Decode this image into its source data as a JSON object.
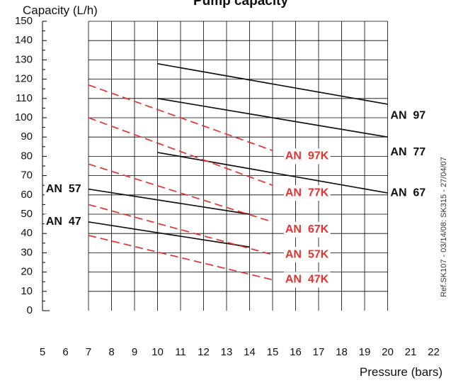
{
  "chart_data": {
    "type": "line",
    "title": "Pump capacity",
    "xlabel": "Pressure  (bars)",
    "ylabel": "Capacity  (L/h)",
    "xlim": [
      5,
      22
    ],
    "ylim": [
      0,
      150
    ],
    "x_ticks": [
      "5",
      "6",
      "7",
      "8",
      "9",
      "10",
      "11",
      "12",
      "13",
      "14",
      "15",
      "16",
      "17",
      "18",
      "19",
      "20",
      "21",
      "22"
    ],
    "y_ticks": [
      "0",
      "10",
      "20",
      "30",
      "40",
      "50",
      "60",
      "70",
      "80",
      "90",
      "100",
      "110",
      "120",
      "130",
      "140",
      "150"
    ],
    "grid": true,
    "side_note": "Ref.SK107 - 03/14/08: SK315 - 27/04/07",
    "colors": {
      "solid": "#111111",
      "dashed": "#e8322e",
      "grid": "#000000"
    },
    "series": [
      {
        "name": "AN  97",
        "style": "solid",
        "x": [
          10,
          20
        ],
        "y": [
          128,
          107
        ]
      },
      {
        "name": "AN  77",
        "style": "solid",
        "x": [
          10,
          20
        ],
        "y": [
          110,
          90
        ]
      },
      {
        "name": "AN  67",
        "style": "solid",
        "x": [
          10,
          20
        ],
        "y": [
          82,
          61
        ]
      },
      {
        "name": "AN  57",
        "style": "solid",
        "x": [
          7,
          14
        ],
        "y": [
          63,
          50
        ]
      },
      {
        "name": "AN  47",
        "style": "solid",
        "x": [
          7,
          14
        ],
        "y": [
          46,
          33
        ]
      },
      {
        "name": "AN  97K",
        "style": "dashed",
        "x": [
          7,
          15
        ],
        "y": [
          117,
          83
        ]
      },
      {
        "name": "AN  77K",
        "style": "dashed",
        "x": [
          7,
          15
        ],
        "y": [
          100,
          65
        ]
      },
      {
        "name": "AN  67K",
        "style": "dashed",
        "x": [
          7,
          15
        ],
        "y": [
          76,
          46
        ]
      },
      {
        "name": "AN  57K",
        "style": "dashed",
        "x": [
          7,
          15
        ],
        "y": [
          55,
          29
        ]
      },
      {
        "name": "AN  47K",
        "style": "dashed",
        "x": [
          7,
          15
        ],
        "y": [
          39,
          16
        ]
      }
    ],
    "labels": [
      {
        "text": "AN  97",
        "color": "#111111",
        "x": 20.12,
        "y": 101
      },
      {
        "text": "AN  77",
        "color": "#111111",
        "x": 20.12,
        "y": 82
      },
      {
        "text": "AN  67",
        "color": "#111111",
        "x": 20.12,
        "y": 61
      },
      {
        "text": "AN  57",
        "color": "#111111",
        "x": 5.15,
        "y": 63
      },
      {
        "text": "AN  47",
        "color": "#111111",
        "x": 5.15,
        "y": 46
      },
      {
        "text": "AN  97K",
        "color": "#e8322e",
        "x": 15.55,
        "y": 80
      },
      {
        "text": "AN  77K",
        "color": "#e8322e",
        "x": 15.55,
        "y": 61
      },
      {
        "text": "AN  67K",
        "color": "#e8322e",
        "x": 15.55,
        "y": 42
      },
      {
        "text": "AN  57K",
        "color": "#e8322e",
        "x": 15.55,
        "y": 29
      },
      {
        "text": "AN  47K",
        "color": "#e8322e",
        "x": 15.55,
        "y": 16
      }
    ]
  }
}
